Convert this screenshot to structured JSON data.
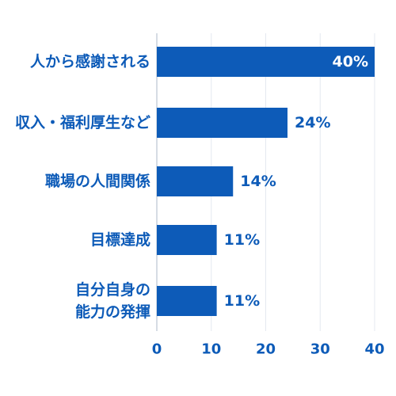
{
  "chart_data": {
    "type": "bar",
    "orientation": "horizontal",
    "categories": [
      [
        "人から感謝される"
      ],
      [
        "収入・福利厚生など"
      ],
      [
        "職場の人間関係"
      ],
      [
        "目標達成"
      ],
      [
        "自分自身の",
        "能力の発揮"
      ]
    ],
    "values": [
      40,
      24,
      14,
      11,
      11
    ],
    "value_labels": [
      "40%",
      "24%",
      "14%",
      "11%",
      "11%"
    ],
    "xticks": [
      "0",
      "10",
      "20",
      "30",
      "40"
    ],
    "xlim": [
      0,
      40
    ],
    "grid": true,
    "title": "",
    "xlabel": "",
    "ylabel": ""
  },
  "colors": {
    "bar": "#0d5bb8",
    "text": "#0d5bb8",
    "inside_label": "#ffffff",
    "grid": "#e4e8f0",
    "axis": "#c9d0dc"
  }
}
